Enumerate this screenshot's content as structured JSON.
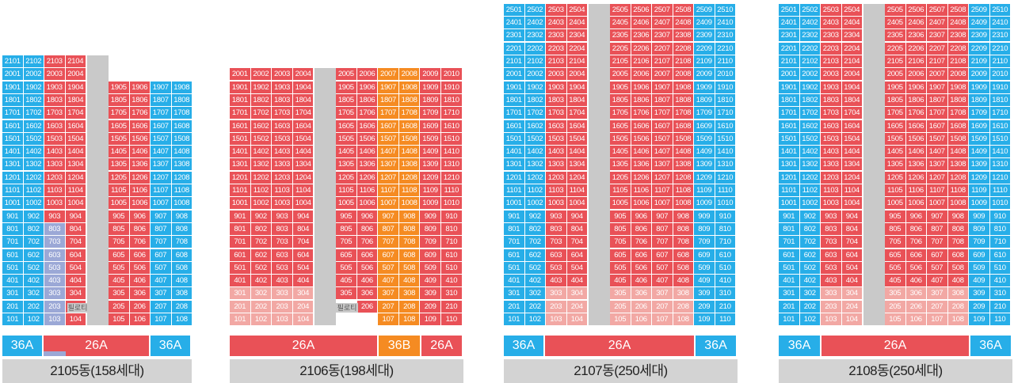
{
  "colors": {
    "type36A": "#27aee8",
    "type26A": "#e95157",
    "type26A_light": "#f2a8a4",
    "type36B": "#f58b22",
    "lavender": "#9ba8d6",
    "core": "#c9c9c9",
    "base": "#d3d3d3"
  },
  "buildings": [
    {
      "id": "b2105",
      "label": "2105동(158세대)",
      "piloti_label": "필로티",
      "bar": [
        {
          "label": "36A",
          "type": "36A"
        },
        {
          "label": "26A",
          "type": "26A"
        },
        {
          "label": "36A",
          "type": "36A"
        }
      ]
    },
    {
      "id": "b2106",
      "label": "2106동(198세대)",
      "piloti_label": "필로티",
      "bar": [
        {
          "label": "26A",
          "type": "26A"
        },
        {
          "label": "36B",
          "type": "36B"
        },
        {
          "label": "26A",
          "type": "26A"
        }
      ]
    },
    {
      "id": "b2107",
      "label": "2107동(250세대)",
      "bar": [
        {
          "label": "36A",
          "type": "36A"
        },
        {
          "label": "26A",
          "type": "26A"
        },
        {
          "label": "36A",
          "type": "36A"
        }
      ]
    },
    {
      "id": "b2108",
      "label": "2108동(250세대)",
      "bar": [
        {
          "label": "36A",
          "type": "36A"
        },
        {
          "label": "26A",
          "type": "26A"
        },
        {
          "label": "36A",
          "type": "36A"
        }
      ]
    }
  ]
}
